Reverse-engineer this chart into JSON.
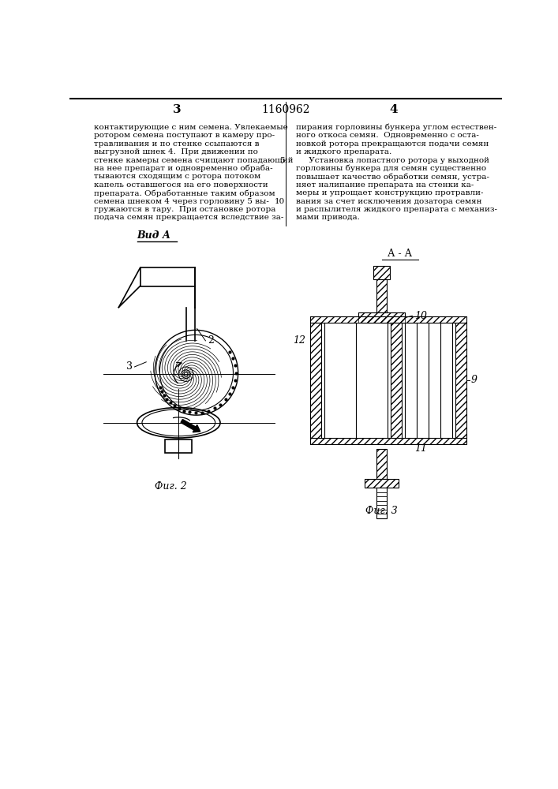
{
  "title": "1160962",
  "page_left": "3",
  "page_right": "4",
  "text_col1": [
    "контактирующие с ним семена. Увлекаемые",
    "ротором семена поступают в камеру про-",
    "травливания и по стенке ссыпаются в",
    "выгрузной шнек 4.  При движении по",
    "стенке камеры семена счищают попадающий",
    "на нее препарат и одновременно обраба-",
    "тываются сходящим с ротора потоком",
    "капель оставшегося на его поверхности",
    "препарата. Обработанные таким образом",
    "семена шнеком 4 через горловину 5 вы-",
    "гружаются в тару.  При остановке ротора",
    "подача семян прекращается вследствие за-"
  ],
  "text_col2": [
    "пирания горловины бункера углом естествен-",
    "ного откоса семян.  Одновременно с оста-",
    "новкой ротора прекращаются подачи семян",
    "и жидкого препарата.",
    "     Установка лопастного ротора у выходной",
    "горловины бункера для семян существенно",
    "повышает качество обработки семян, устра-",
    "няет налипание препарата на стенки ка-",
    "меры и упрощает конструкцию протравли-",
    "вания за счет исключения дозатора семян",
    "и распылителя жидкого препарата с механиз-",
    "мами привода."
  ],
  "label_vid_a": "Вид А",
  "label_fig2": "Фиг. 2",
  "label_fig3": "Фиг. 3",
  "label_aa": "А - А",
  "bg_color": "#ffffff"
}
